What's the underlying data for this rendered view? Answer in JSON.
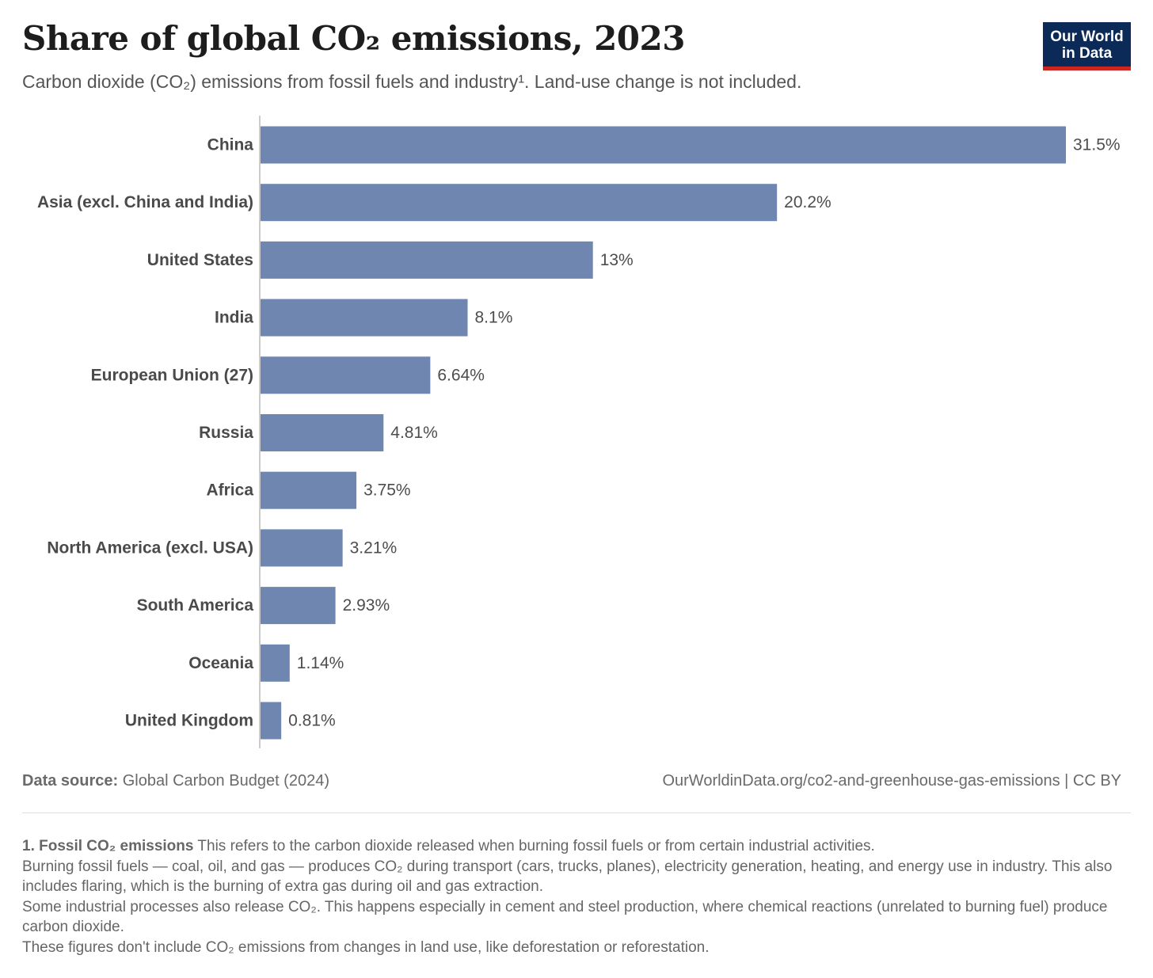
{
  "header": {
    "title": "Share of global CO₂ emissions, 2023",
    "subtitle": "Carbon dioxide (CO₂) emissions from fossil fuels and industry¹. Land-use change is not included."
  },
  "logo": {
    "line1": "Our World",
    "line2": "in Data",
    "bg_color": "#0b2a57",
    "accent_color": "#ce261e"
  },
  "chart_data": {
    "type": "bar",
    "orientation": "horizontal",
    "title": "Share of global CO₂ emissions, 2023",
    "categories": [
      "China",
      "Asia (excl. China and India)",
      "United States",
      "India",
      "European Union (27)",
      "Russia",
      "Africa",
      "North America (excl. USA)",
      "South America",
      "Oceania",
      "United Kingdom"
    ],
    "values": [
      31.5,
      20.2,
      13,
      8.1,
      6.64,
      4.81,
      3.75,
      3.21,
      2.93,
      1.14,
      0.81
    ],
    "value_labels": [
      "31.5%",
      "20.2%",
      "13%",
      "8.1%",
      "6.64%",
      "4.81%",
      "3.75%",
      "3.21%",
      "2.93%",
      "1.14%",
      "0.81%"
    ],
    "xlim": [
      0,
      31.5
    ],
    "bar_color": "#6f87b0",
    "axis_color": "#9a9a9a",
    "grid": false,
    "legend": "none"
  },
  "source": {
    "label": "Data source:",
    "text": "Global Carbon Budget (2024)",
    "url_text": "OurWorldinData.org/co2-and-greenhouse-gas-emissions | CC BY"
  },
  "notes": {
    "term": "1. Fossil CO₂ emissions",
    "line1": "This refers to the carbon dioxide released when burning fossil fuels or from certain industrial activities.",
    "line2": "Burning fossil fuels — coal, oil, and gas — produces CO₂ during transport (cars, trucks, planes), electricity generation, heating, and energy use in industry. This also includes flaring, which is the burning of extra gas during oil and gas extraction.",
    "line3": "Some industrial processes also release CO₂. This happens especially in cement and steel production, where chemical reactions (unrelated to burning fuel) produce carbon dioxide.",
    "line4": "These figures don't include CO₂ emissions from changes in land use, like deforestation or reforestation."
  }
}
